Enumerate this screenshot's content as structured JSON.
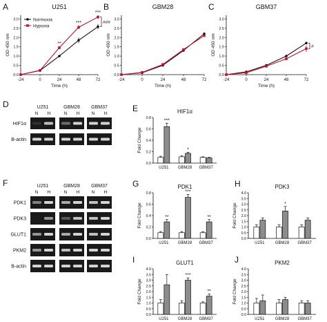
{
  "colors": {
    "normoxia": "#111111",
    "hypoxia": "#c8102e",
    "bar_n": "#ffffff",
    "bar_h": "#8c8c8c",
    "gel_bg": "#1a1a1a",
    "band": "#e8e8e8"
  },
  "line_common": {
    "x": [
      -24,
      0,
      24,
      48,
      72
    ],
    "xticks": [
      "-24",
      "0",
      "24",
      "48",
      "72"
    ],
    "xlabel": "Time (h)",
    "ylabel": "OD 450 nm",
    "yticks": [
      "0.0",
      "0.5",
      "1.0",
      "1.5",
      "2.0",
      "2.5",
      "3.0"
    ],
    "ylim": [
      0,
      3.2
    ]
  },
  "chart_data": [
    {
      "panel": "A",
      "type": "line",
      "title": "U251",
      "legend": [
        "Normoxia",
        "Hypoxia"
      ],
      "series": [
        {
          "name": "Normoxia",
          "values": [
            0.0,
            0.22,
            1.0,
            1.85,
            2.58
          ],
          "err": [
            0,
            0.03,
            0.05,
            0.15,
            0.14
          ]
        },
        {
          "name": "Hypoxia",
          "values": [
            0.0,
            0.23,
            1.45,
            2.55,
            3.1
          ],
          "err": [
            0,
            0.03,
            0.08,
            0.1,
            0.1
          ]
        }
      ],
      "sig_points": [
        "",
        "",
        "**",
        "***",
        "***"
      ],
      "bracket_label": "###"
    },
    {
      "panel": "B",
      "type": "line",
      "title": "GBM28",
      "series": [
        {
          "name": "Normoxia",
          "values": [
            0.0,
            0.1,
            0.5,
            1.3,
            2.2
          ],
          "err": [
            0,
            0.02,
            0.04,
            0.05,
            0.06
          ]
        },
        {
          "name": "Hypoxia",
          "values": [
            0.0,
            0.12,
            0.55,
            1.35,
            2.1
          ],
          "err": [
            0,
            0.02,
            0.04,
            0.05,
            0.06
          ]
        }
      ]
    },
    {
      "panel": "C",
      "type": "line",
      "title": "GBM37",
      "series": [
        {
          "name": "Normoxia",
          "values": [
            0.0,
            0.15,
            0.5,
            1.0,
            1.7
          ],
          "err": [
            0,
            0.02,
            0.05,
            0.05,
            0.06
          ]
        },
        {
          "name": "Hypoxia",
          "values": [
            0.0,
            0.1,
            0.45,
            0.85,
            1.4
          ],
          "err": [
            0,
            0.02,
            0.05,
            0.08,
            0.18
          ]
        }
      ],
      "bracket_label": "#"
    },
    {
      "panel": "E",
      "type": "bar",
      "title": "HIF1α",
      "ylabel": "Fold Change",
      "categories": [
        "U251",
        "GBM28",
        "GBM37"
      ],
      "yticks": [
        "0.0",
        "0.2",
        "0.4",
        "0.6",
        "0.8"
      ],
      "ylim": [
        0,
        0.8
      ],
      "series": [
        {
          "name": "N",
          "values": [
            0.1,
            0.11,
            0.1
          ],
          "err": [
            0.02,
            0.02,
            0.01
          ]
        },
        {
          "name": "H",
          "values": [
            0.64,
            0.17,
            0.09
          ],
          "err": [
            0.06,
            0.02,
            0.01
          ]
        }
      ],
      "sig": [
        "***",
        "*",
        ""
      ]
    },
    {
      "panel": "G",
      "type": "bar",
      "title": "PDK1",
      "ylabel": "Fold Change",
      "categories": [
        "U251",
        "GBM28",
        "GBM37"
      ],
      "yticks": [
        "0.0",
        "0.2",
        "0.4",
        "0.6",
        "0.8"
      ],
      "ylim": [
        0,
        0.8
      ],
      "series": [
        {
          "name": "N",
          "values": [
            0.1,
            0.1,
            0.1
          ],
          "err": [
            0.02,
            0.02,
            0.02
          ]
        },
        {
          "name": "H",
          "values": [
            0.29,
            0.72,
            0.29
          ],
          "err": [
            0.04,
            0.05,
            0.04
          ]
        }
      ],
      "sig": [
        "**",
        "***",
        "**"
      ]
    },
    {
      "panel": "H",
      "type": "bar",
      "title": "PDK3",
      "ylabel": "Fold Change",
      "categories": [
        "U251",
        "GBM28",
        "GBM37"
      ],
      "yticks": [
        "0.0",
        "0.5",
        "1.0",
        "1.5",
        "2.0",
        "2.5",
        "3.0",
        "3.5",
        "4.0"
      ],
      "ylim": [
        0,
        4.0
      ],
      "series": [
        {
          "name": "N",
          "values": [
            1.0,
            1.0,
            1.0
          ],
          "err": [
            0.2,
            0.2,
            0.2
          ]
        },
        {
          "name": "H",
          "values": [
            1.6,
            2.4,
            1.6
          ],
          "err": [
            0.2,
            0.4,
            0.2
          ]
        }
      ],
      "sig": [
        "",
        "*",
        ""
      ]
    },
    {
      "panel": "I",
      "type": "bar",
      "title": "GLUT1",
      "ylabel": "Fold Change",
      "categories": [
        "U251",
        "GBM28",
        "GBM37"
      ],
      "yticks": [
        "0.0",
        "0.5",
        "1.0",
        "1.5",
        "2.0",
        "2.5",
        "3.0",
        "3.5",
        "4.0"
      ],
      "ylim": [
        0,
        4.0
      ],
      "series": [
        {
          "name": "N",
          "values": [
            1.0,
            1.0,
            1.0
          ],
          "err": [
            0.3,
            0.2,
            0.1
          ]
        },
        {
          "name": "H",
          "values": [
            2.6,
            3.0,
            1.6
          ],
          "err": [
            0.9,
            0.2,
            0.2
          ]
        }
      ],
      "sig": [
        "",
        "***",
        "**"
      ]
    },
    {
      "panel": "J",
      "type": "bar",
      "title": "PKM2",
      "ylabel": "Fold Change",
      "categories": [
        "U251",
        "GBM28",
        "GBM37"
      ],
      "yticks": [
        "0.0",
        "0.5",
        "1.0",
        "1.5",
        "2.0",
        "2.5",
        "3.0",
        "3.5",
        "4.0"
      ],
      "ylim": [
        0,
        4.0
      ],
      "series": [
        {
          "name": "N",
          "values": [
            1.0,
            1.0,
            1.0
          ],
          "err": [
            0.4,
            0.3,
            0.2
          ]
        },
        {
          "name": "H",
          "values": [
            1.2,
            1.3,
            1.0
          ],
          "err": [
            0.5,
            0.2,
            0.2
          ]
        }
      ],
      "sig": [
        "",
        "",
        ""
      ]
    }
  ],
  "gels": [
    {
      "panel": "D",
      "groups": [
        "U251",
        "GBM28",
        "GBM37"
      ],
      "lanes": [
        "N",
        "H"
      ],
      "rows": [
        {
          "label": "HIF1α",
          "bands": [
            0.1,
            0.8,
            0.4,
            0.9,
            0.9,
            0.9
          ]
        },
        {
          "label": "B-actin",
          "bands": [
            0.9,
            0.9,
            0.9,
            0.9,
            0.9,
            0.9
          ]
        }
      ]
    },
    {
      "panel": "F",
      "groups": [
        "U251",
        "GBM28",
        "GBM37"
      ],
      "lanes": [
        "N",
        "H"
      ],
      "rows": [
        {
          "label": "PDK1",
          "bands": [
            0.5,
            0.9,
            0.7,
            0.9,
            0.8,
            0.9
          ]
        },
        {
          "label": "PDK3",
          "bands": [
            0.0,
            0.6,
            0.3,
            0.8,
            0.8,
            0.9
          ]
        },
        {
          "label": "GLUT1",
          "bands": [
            0.6,
            0.9,
            0.7,
            0.9,
            0.8,
            0.9
          ]
        },
        {
          "label": "PKM2",
          "bands": [
            0.6,
            0.9,
            0.8,
            0.9,
            0.9,
            0.9
          ]
        },
        {
          "label": "B-actin",
          "bands": [
            0.9,
            0.9,
            0.9,
            0.9,
            0.9,
            0.9
          ]
        }
      ]
    }
  ]
}
